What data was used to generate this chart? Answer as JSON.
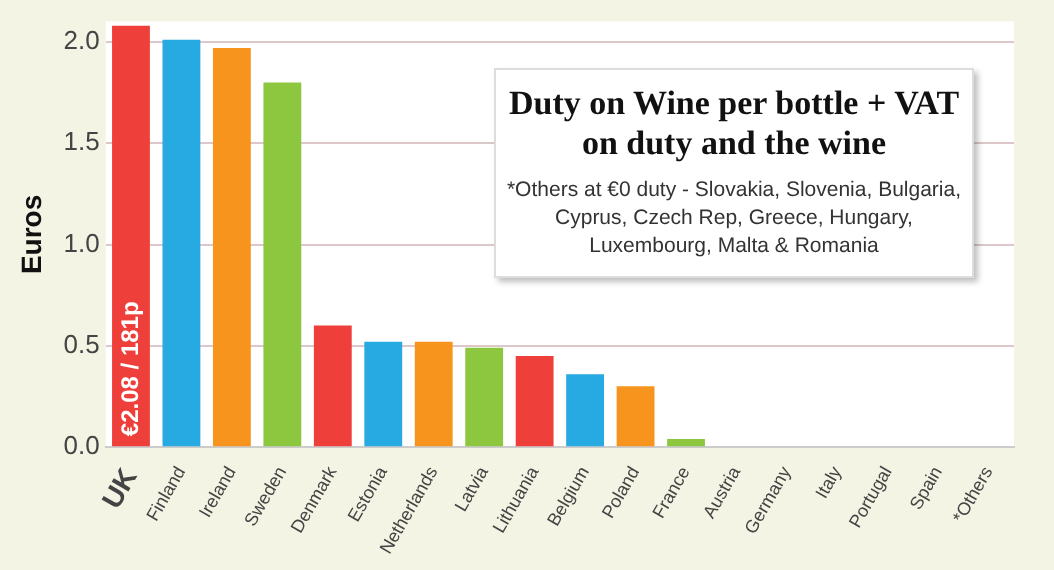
{
  "chart_data": {
    "type": "bar",
    "title": "Duty on Wine per bottle + VAT on duty and the wine",
    "subtitle": "*Others at €0 duty - Slovakia, Slovenia, Bulgaria, Cyprus, Czech Rep, Greece, Hungary, Luxembourg, Malta & Romania",
    "ylabel": "Euros",
    "categories": [
      "UK",
      "Finland",
      "Ireland",
      "Sweden",
      "Denmark",
      "Estonia",
      "Netherlands",
      "Latvia",
      "Lithuania",
      "Belgium",
      "Poland",
      "France",
      "Austria",
      "Germany",
      "Italy",
      "Portugal",
      "Spain",
      "*Others"
    ],
    "values": [
      2.08,
      2.01,
      1.97,
      1.8,
      0.6,
      0.52,
      0.52,
      0.49,
      0.45,
      0.36,
      0.3,
      0.04,
      0,
      0,
      0,
      0,
      0,
      0
    ],
    "value_labels": [
      "€2.08 / 181p",
      null,
      null,
      null,
      null,
      null,
      null,
      null,
      null,
      null,
      null,
      null,
      null,
      null,
      null,
      null,
      null,
      null
    ],
    "colors": [
      "#ee3f3a",
      "#27a9e1",
      "#f7941d",
      "#8dc63f",
      "#ee3f3a",
      "#27a9e1",
      "#f7941d",
      "#8dc63f",
      "#ee3f3a",
      "#27a9e1",
      "#f7941d",
      "#8dc63f",
      "#ee3f3a",
      "#27a9e1",
      "#f7941d",
      "#8dc63f",
      "#ee3f3a",
      "#27a9e1"
    ],
    "ylim": [
      0,
      2.1
    ],
    "yticks": [
      {
        "value": 0,
        "label": "0.0"
      },
      {
        "value": 0.5,
        "label": "0.5"
      },
      {
        "value": 1,
        "label": "1.0"
      },
      {
        "value": 1.5,
        "label": "1.5"
      },
      {
        "value": 2,
        "label": "2.0"
      }
    ],
    "grid": "y",
    "legend": false
  }
}
